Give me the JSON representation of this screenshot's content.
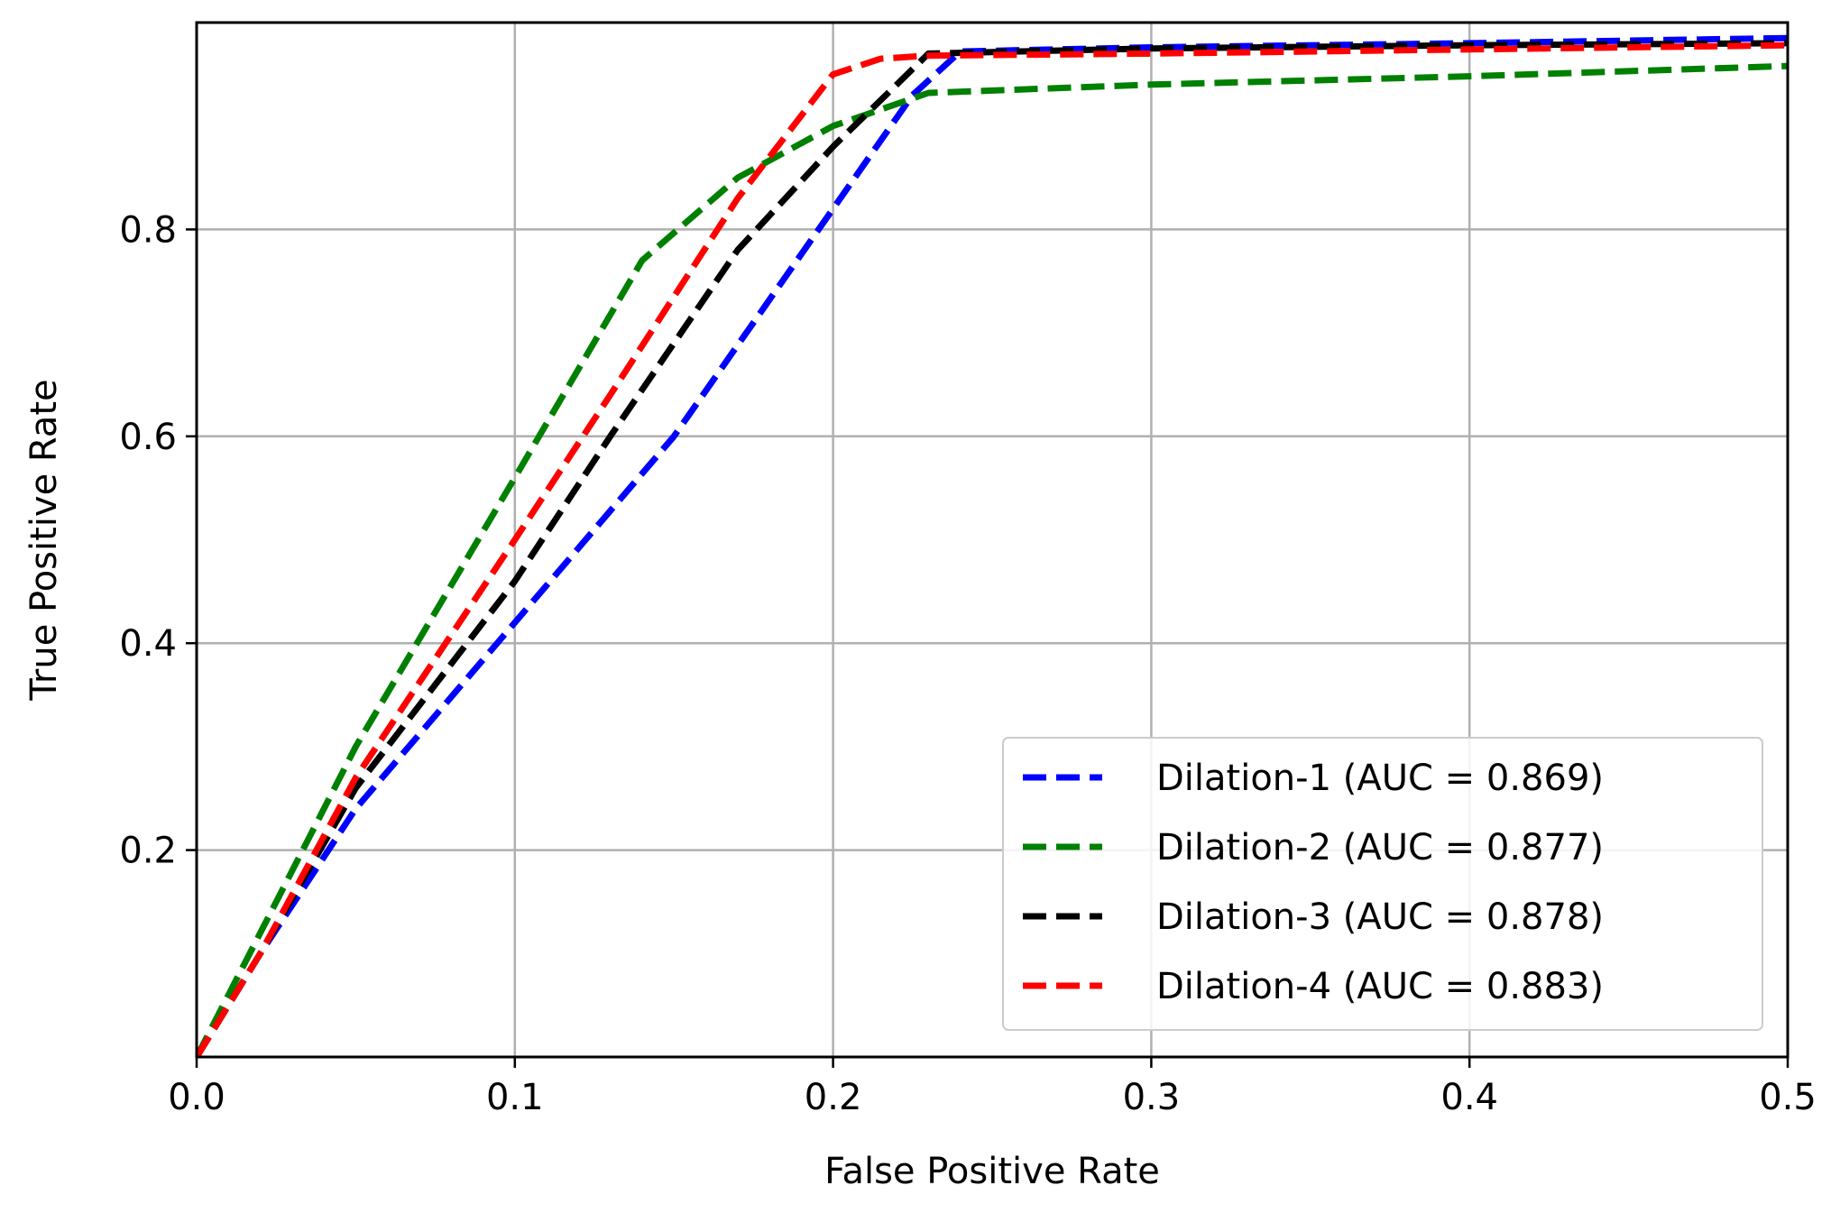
{
  "chart_data": {
    "type": "line",
    "title": "",
    "xlabel": "False Positive Rate",
    "ylabel": "True Positive Rate",
    "xlim": [
      0.0,
      0.5
    ],
    "ylim": [
      0.0,
      1.0
    ],
    "xticks": [
      0.0,
      0.1,
      0.2,
      0.3,
      0.4,
      0.5
    ],
    "xtick_labels": [
      "0.0",
      "0.1",
      "0.2",
      "0.3",
      "0.4",
      "0.5"
    ],
    "yticks": [
      0.2,
      0.4,
      0.6,
      0.8
    ],
    "ytick_labels": [
      "0.2",
      "0.4",
      "0.6",
      "0.8"
    ],
    "grid": true,
    "legend_position": "bottom-right",
    "series": [
      {
        "name": "Dilation-1 (AUC = 0.869)",
        "color": "#0000ff",
        "x": [
          0.0,
          0.02,
          0.05,
          0.1,
          0.15,
          0.2,
          0.225,
          0.24,
          0.3,
          0.4,
          0.5
        ],
        "y": [
          0.0,
          0.1,
          0.24,
          0.42,
          0.6,
          0.82,
          0.93,
          0.972,
          0.976,
          0.98,
          0.985
        ]
      },
      {
        "name": "Dilation-2 (AUC = 0.877)",
        "color": "#008000",
        "x": [
          0.0,
          0.02,
          0.05,
          0.1,
          0.14,
          0.17,
          0.2,
          0.23,
          0.3,
          0.4,
          0.5
        ],
        "y": [
          0.0,
          0.12,
          0.3,
          0.56,
          0.77,
          0.85,
          0.9,
          0.932,
          0.94,
          0.948,
          0.958
        ]
      },
      {
        "name": "Dilation-3 (AUC = 0.878)",
        "color": "#000000",
        "x": [
          0.0,
          0.02,
          0.05,
          0.1,
          0.13,
          0.17,
          0.2,
          0.23,
          0.3,
          0.4,
          0.5
        ],
        "y": [
          0.0,
          0.1,
          0.26,
          0.46,
          0.6,
          0.78,
          0.88,
          0.97,
          0.975,
          0.978,
          0.98
        ]
      },
      {
        "name": "Dilation-4 (AUC = 0.883)",
        "color": "#ff0000",
        "x": [
          0.0,
          0.02,
          0.05,
          0.1,
          0.13,
          0.17,
          0.2,
          0.215,
          0.23,
          0.3,
          0.4,
          0.5
        ],
        "y": [
          0.0,
          0.1,
          0.27,
          0.5,
          0.64,
          0.83,
          0.95,
          0.965,
          0.968,
          0.97,
          0.974,
          0.978
        ]
      }
    ]
  }
}
